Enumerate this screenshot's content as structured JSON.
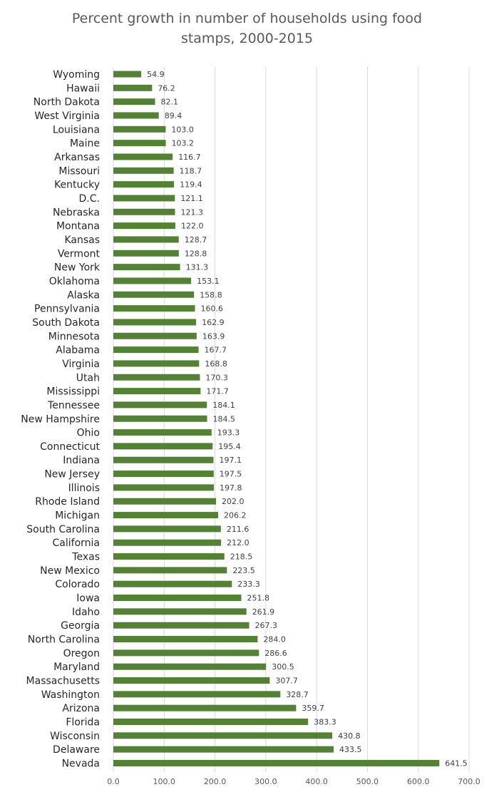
{
  "chart_data": {
    "type": "bar",
    "orientation": "horizontal",
    "title_line1": "Percent growth in number of households using food",
    "title_line2": "stamps, 2000-2015",
    "bar_color": "#548235",
    "grid_color": "#d9d9d9",
    "xlim": [
      0,
      700
    ],
    "x_ticks": [
      0,
      100,
      200,
      300,
      400,
      500,
      600,
      700
    ],
    "x_tick_labels": [
      "0.0",
      "100.0",
      "200.0",
      "300.0",
      "400.0",
      "500.0",
      "600.0",
      "700.0"
    ],
    "grid": true,
    "categories": [
      "Wyoming",
      "Hawaii",
      "North Dakota",
      "West Virginia",
      "Louisiana",
      "Maine",
      "Arkansas",
      "Missouri",
      "Kentucky",
      "D.C.",
      "Nebraska",
      "Montana",
      "Kansas",
      "Vermont",
      "New York",
      "Oklahoma",
      "Alaska",
      "Pennsylvania",
      "South Dakota",
      "Minnesota",
      "Alabama",
      "Virginia",
      "Utah",
      "Mississippi",
      "Tennessee",
      "New Hampshire",
      "Ohio",
      "Connecticut",
      "Indiana",
      "New Jersey",
      "Illinois",
      "Rhode Island",
      "Michigan",
      "South Carolina",
      "California",
      "Texas",
      "New Mexico",
      "Colorado",
      "Iowa",
      "Idaho",
      "Georgia",
      "North Carolina",
      "Oregon",
      "Maryland",
      "Massachusetts",
      "Washington",
      "Arizona",
      "Florida",
      "Wisconsin",
      "Delaware",
      "Nevada"
    ],
    "values": [
      54.9,
      76.2,
      82.1,
      89.4,
      103.0,
      103.2,
      116.7,
      118.7,
      119.4,
      121.1,
      121.3,
      122.0,
      128.7,
      128.8,
      131.3,
      153.1,
      158.8,
      160.6,
      162.9,
      163.9,
      167.7,
      168.8,
      170.3,
      171.7,
      184.1,
      184.5,
      193.3,
      195.4,
      197.1,
      197.5,
      197.8,
      202.0,
      206.2,
      211.6,
      212.0,
      218.5,
      223.5,
      233.3,
      251.8,
      261.9,
      267.3,
      284.0,
      286.6,
      300.5,
      307.7,
      328.7,
      359.7,
      383.3,
      430.8,
      433.5,
      641.5
    ],
    "value_labels": [
      "54.9",
      "76.2",
      "82.1",
      "89.4",
      "103.0",
      "103.2",
      "116.7",
      "118.7",
      "119.4",
      "121.1",
      "121.3",
      "122.0",
      "128.7",
      "128.8",
      "131.3",
      "153.1",
      "158.8",
      "160.6",
      "162.9",
      "163.9",
      "167.7",
      "168.8",
      "170.3",
      "171.7",
      "184.1",
      "184.5",
      "193.3",
      "195.4",
      "197.1",
      "197.5",
      "197.8",
      "202.0",
      "206.2",
      "211.6",
      "212.0",
      "218.5",
      "223.5",
      "233.3",
      "251.8",
      "261.9",
      "267.3",
      "284.0",
      "286.6",
      "300.5",
      "307.7",
      "328.7",
      "359.7",
      "383.3",
      "430.8",
      "433.5",
      "641.5"
    ]
  }
}
